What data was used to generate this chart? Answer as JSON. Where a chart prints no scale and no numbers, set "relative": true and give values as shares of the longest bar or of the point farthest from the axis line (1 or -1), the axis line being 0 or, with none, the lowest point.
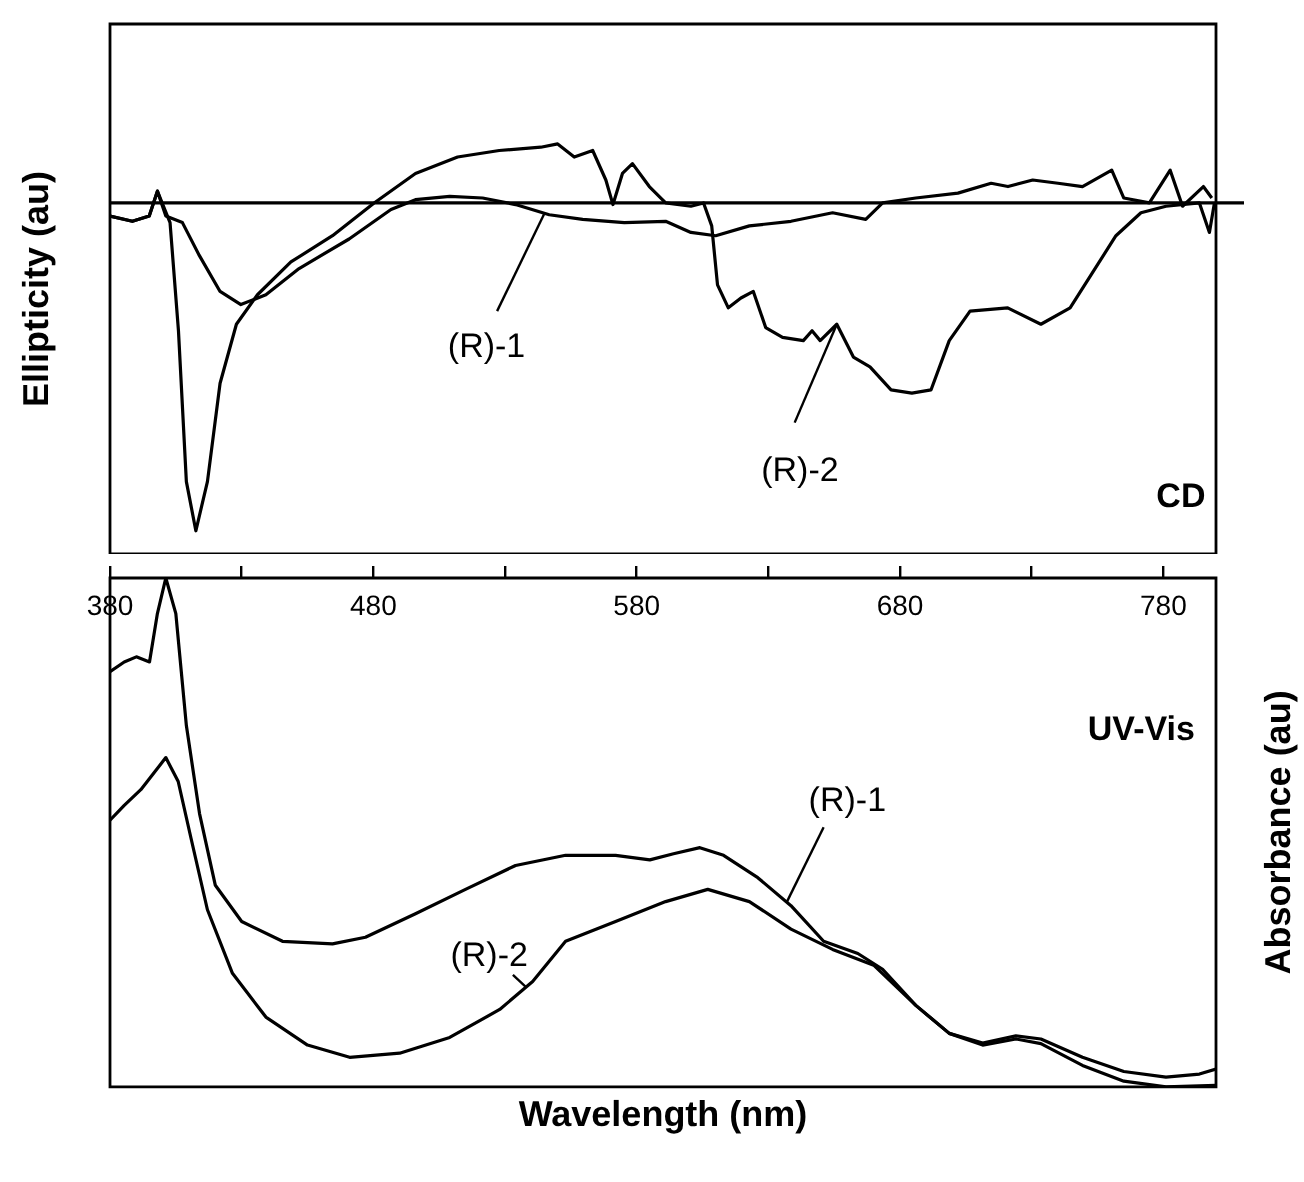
{
  "chart_data": [
    {
      "type": "line",
      "relative": true,
      "ylabel": "Ellipticity (au)",
      "xlim": [
        380,
        800
      ],
      "legend": false,
      "grid": false,
      "marker": "none",
      "ref_lines": [
        {
          "axis": "y",
          "value": 0,
          "color": "#000000"
        }
      ],
      "annotations": [
        "CD"
      ],
      "series": [
        {
          "name": "(R)-1",
          "color": "#000000",
          "x": [
            380,
            388.5,
            394.9,
            398,
            401.2,
            407.5,
            413.9,
            421.8,
            429.7,
            439.2,
            451.8,
            470.8,
            486.7,
            496,
            509,
            521.5,
            534,
            546.8,
            559.5,
            575.3,
            591,
            600.6,
            610,
            622.8,
            638.6,
            654.4,
            667,
            673.4,
            686,
            702,
            714.6,
            721,
            730.4,
            740,
            749.3,
            760.4,
            765,
            774.7,
            782.6,
            787.3,
            795.2,
            798.4
          ],
          "values": [
            -0.04,
            -0.056,
            -0.04,
            0.036,
            -0.04,
            -0.06,
            -0.16,
            -0.27,
            -0.31,
            -0.28,
            -0.2,
            -0.11,
            -0.02,
            0.01,
            0.02,
            0.015,
            -0.005,
            -0.036,
            -0.05,
            -0.06,
            -0.056,
            -0.09,
            -0.1,
            -0.07,
            -0.056,
            -0.03,
            -0.05,
            0,
            0.015,
            0.03,
            0.06,
            0.05,
            0.07,
            0.06,
            0.05,
            0.1,
            0.015,
            0,
            0.1,
            -0.01,
            0.05,
            0.015
          ]
        },
        {
          "name": "(R)-2",
          "color": "#000000",
          "x": [
            380,
            388.5,
            394.9,
            398,
            402.8,
            406,
            409,
            412.6,
            417,
            421.8,
            428,
            436,
            448.7,
            464.5,
            480.3,
            496,
            512,
            527.8,
            543.6,
            550,
            556.3,
            563.3,
            568.3,
            571,
            574.6,
            578.4,
            584.8,
            591,
            600.6,
            605.4,
            608.5,
            610.7,
            614.8,
            619.6,
            624.3,
            629,
            635.4,
            643.3,
            646.6,
            649.7,
            656,
            662.3,
            668.6,
            676.6,
            684.5,
            691.8,
            698.7,
            706.6,
            720.9,
            733.5,
            744.6,
            752.5,
            762,
            771.5,
            781,
            793.7,
            797.5,
            799.4
          ],
          "values": [
            -0.04,
            -0.056,
            -0.04,
            0.036,
            -0.06,
            -0.39,
            -0.85,
            -1,
            -0.85,
            -0.55,
            -0.37,
            -0.28,
            -0.18,
            -0.1,
            0,
            0.09,
            0.14,
            0.16,
            0.17,
            0.18,
            0.14,
            0.16,
            0.07,
            -0.005,
            0.09,
            0.12,
            0.05,
            0,
            -0.01,
            0,
            -0.07,
            -0.25,
            -0.32,
            -0.29,
            -0.27,
            -0.38,
            -0.41,
            -0.42,
            -0.39,
            -0.42,
            -0.37,
            -0.47,
            -0.5,
            -0.57,
            -0.58,
            -0.57,
            -0.42,
            -0.33,
            -0.32,
            -0.37,
            -0.32,
            -0.22,
            -0.1,
            -0.03,
            -0.01,
            0,
            -0.09,
            0
          ]
        }
      ]
    },
    {
      "type": "line",
      "relative": true,
      "xlabel": "Wavelength (nm)",
      "y2label": "Absorbance (au)",
      "xlim": [
        380,
        800
      ],
      "legend": false,
      "grid": false,
      "marker": "none",
      "xticks": [
        380,
        {
          "value": 430,
          "label": null
        },
        480,
        {
          "value": 530,
          "label": null
        },
        580,
        {
          "value": 630,
          "label": null
        },
        680,
        {
          "value": 730,
          "label": null
        },
        780
      ],
      "annotations": [
        "UV-Vis"
      ],
      "series": [
        {
          "name": "(R)-1",
          "color": "#000000",
          "axis": "y2",
          "x": [
            380,
            385.4,
            390,
            395,
            398,
            401.2,
            405,
            409,
            414,
            420,
            430,
            445.5,
            464.5,
            477,
            496,
            515,
            534,
            553,
            572,
            585,
            594,
            604,
            613,
            626,
            638.6,
            651,
            664,
            673.4,
            686,
            698.7,
            711.4,
            724,
            733.5,
            749.3,
            765,
            781,
            793.7,
            800
          ],
          "values": [
            0.816,
            0.835,
            0.845,
            0.835,
            0.93,
            1,
            0.93,
            0.71,
            0.537,
            0.396,
            0.325,
            0.286,
            0.281,
            0.294,
            0.34,
            0.388,
            0.435,
            0.455,
            0.455,
            0.446,
            0.458,
            0.47,
            0.455,
            0.411,
            0.356,
            0.286,
            0.262,
            0.231,
            0.16,
            0.105,
            0.086,
            0.1,
            0.094,
            0.058,
            0.03,
            0.019,
            0.025,
            0.035
          ]
        },
        {
          "name": "(R)-2",
          "color": "#000000",
          "axis": "y2",
          "x": [
            380,
            385.4,
            391.7,
            401.2,
            405.9,
            410.7,
            417,
            426.5,
            439.2,
            455,
            471,
            490,
            509,
            528,
            540.5,
            553,
            572,
            591,
            607,
            622.8,
            638.6,
            654.4,
            670,
            686,
            698.7,
            711.4,
            724,
            733.5,
            749.3,
            765,
            781,
            800
          ],
          "values": [
            0.524,
            0.553,
            0.584,
            0.647,
            0.6,
            0.49,
            0.348,
            0.223,
            0.137,
            0.082,
            0.058,
            0.066,
            0.097,
            0.152,
            0.207,
            0.286,
            0.325,
            0.364,
            0.388,
            0.364,
            0.31,
            0.27,
            0.239,
            0.16,
            0.105,
            0.082,
            0.094,
            0.085,
            0.042,
            0.011,
            0,
            0.003
          ]
        }
      ]
    }
  ]
}
